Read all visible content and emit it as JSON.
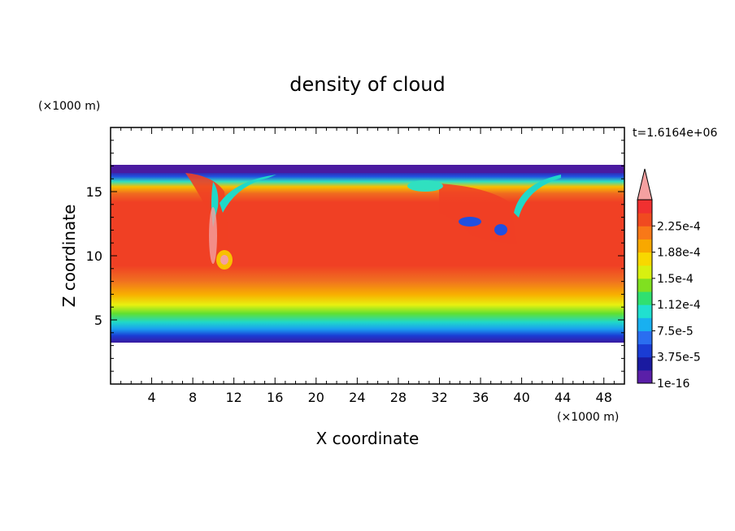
{
  "chart_data": {
    "type": "heatmap",
    "title": "density of cloud",
    "xlabel": "X coordinate",
    "ylabel": "Z coordinate",
    "x_unit": "(×1000 m)",
    "y_unit": "(×1000 m)",
    "time_label": "t=1.6164e+06",
    "xlim": [
      0,
      50
    ],
    "ylim": [
      0,
      20
    ],
    "x_ticks": [
      4,
      8,
      12,
      16,
      20,
      24,
      28,
      32,
      36,
      40,
      44,
      48
    ],
    "y_ticks": [
      5,
      10,
      15
    ],
    "colorbar": {
      "labels": [
        "1e-16",
        "3.75e-5",
        "7.5e-5",
        "1.12e-4",
        "1.5e-4",
        "1.88e-4",
        "2.25e-4"
      ],
      "colors": [
        "#5a1fa8",
        "#1a1aa0",
        "#1a3cd4",
        "#2a6ef0",
        "#18b0f0",
        "#20e0d0",
        "#30e070",
        "#80e020",
        "#d8f010",
        "#f8d800",
        "#f8a800",
        "#f87818",
        "#f04a20",
        "#f03030"
      ],
      "extend_color": "#f4a0a0"
    },
    "field": {
      "cloud_base_km": 3.5,
      "cloud_top_km": 16.5,
      "core_value": 0.00023
    }
  }
}
